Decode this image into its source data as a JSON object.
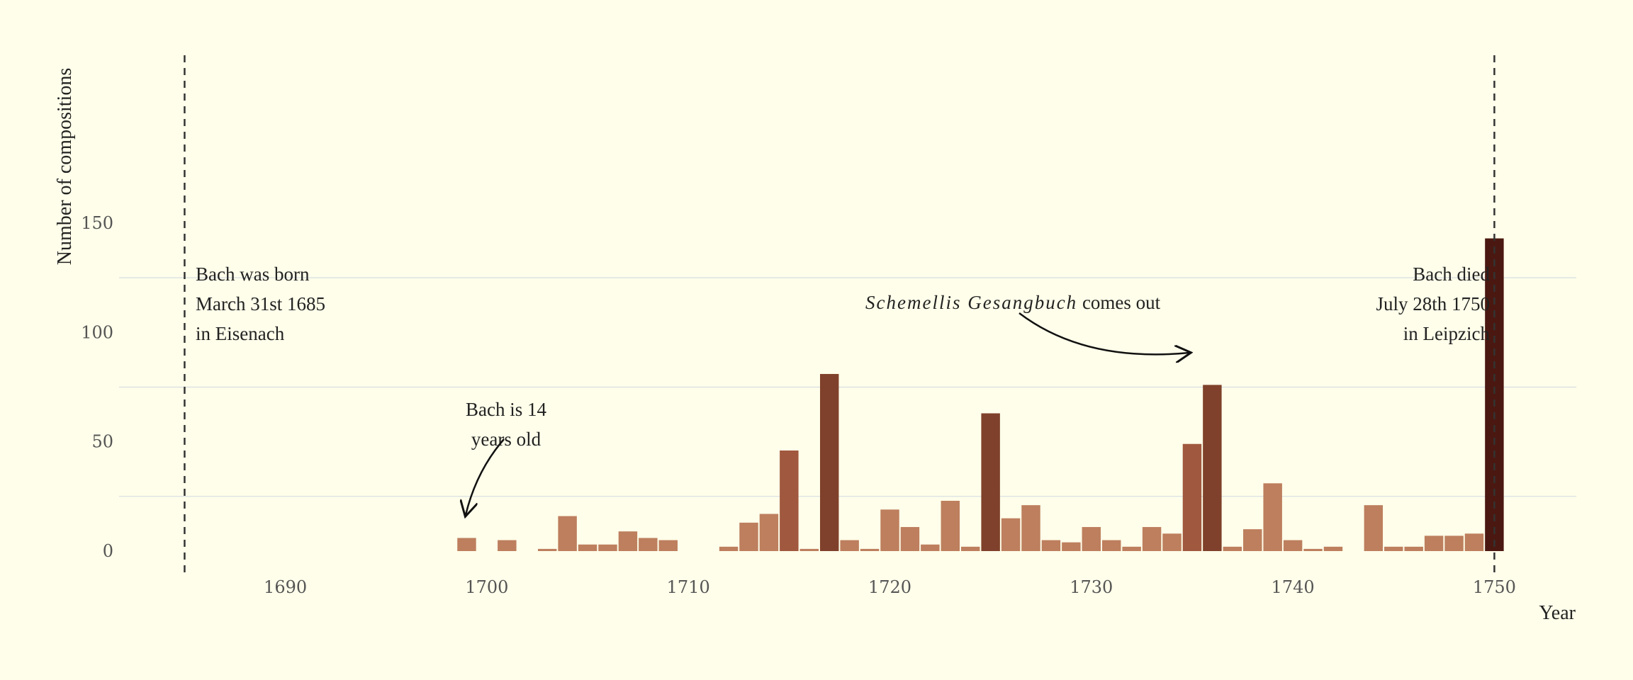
{
  "chart_data": {
    "type": "bar",
    "title": "",
    "xlabel": "Year",
    "ylabel": "Number of compositions",
    "xlim": [
      1680,
      1754
    ],
    "ylim": [
      0,
      150
    ],
    "x_ticks": [
      "1690",
      "1700",
      "1710",
      "1720",
      "1730",
      "1740",
      "1750"
    ],
    "y_ticks": [
      "0",
      "50",
      "100",
      "150"
    ],
    "grid": "horizontal",
    "x": [
      1699,
      1701,
      1703,
      1704,
      1705,
      1706,
      1707,
      1708,
      1709,
      1712,
      1713,
      1714,
      1715,
      1716,
      1717,
      1718,
      1719,
      1720,
      1721,
      1722,
      1723,
      1724,
      1725,
      1726,
      1727,
      1728,
      1729,
      1730,
      1731,
      1732,
      1733,
      1734,
      1735,
      1736,
      1737,
      1738,
      1739,
      1740,
      1741,
      1742,
      1744,
      1745,
      1746,
      1747,
      1748,
      1749,
      1750
    ],
    "values": [
      6,
      5,
      1,
      16,
      3,
      3,
      9,
      6,
      5,
      2,
      13,
      17,
      46,
      1,
      81,
      5,
      1,
      19,
      11,
      3,
      23,
      2,
      63,
      15,
      21,
      5,
      4,
      11,
      5,
      2,
      11,
      8,
      49,
      76,
      2,
      10,
      31,
      5,
      1,
      2,
      21,
      2,
      2,
      7,
      7,
      8,
      143
    ],
    "color_scale": [
      "#bd7f5e",
      "#a0583f",
      "#7f412b",
      "#4a1810"
    ],
    "event_lines": [
      1685,
      1750
    ]
  },
  "annotations": {
    "born_lines": [
      "Bach was born",
      "March 31st 1685",
      "in Eisenach"
    ],
    "fourteen_lines": [
      "Bach is 14",
      "years old"
    ],
    "schemelli_italic": "Schemellis Gesangbuch",
    "schemelli_rest": " comes out",
    "died_lines": [
      "Bach died",
      "July 28th 1750",
      "in Leipzich"
    ]
  }
}
